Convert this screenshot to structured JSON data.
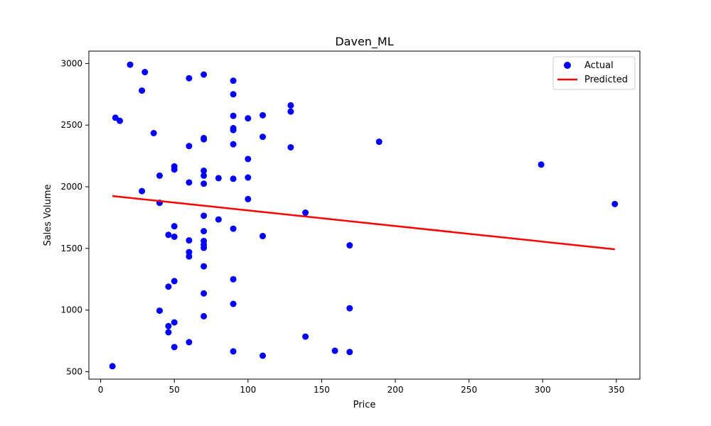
{
  "chart_data": {
    "type": "scatter",
    "title": "Daven_ML",
    "xlabel": "Price",
    "ylabel": "Sales Volume",
    "xlim": [
      -8,
      366
    ],
    "ylim": [
      440,
      3100
    ],
    "xticks": [
      0,
      50,
      100,
      150,
      200,
      250,
      300,
      350
    ],
    "yticks": [
      500,
      1000,
      1500,
      2000,
      2500,
      3000
    ],
    "grid": false,
    "legend_position": "top-right",
    "series": [
      {
        "name": "Actual",
        "kind": "scatter",
        "color": "#0000ff",
        "points": [
          [
            8,
            545
          ],
          [
            10,
            2560
          ],
          [
            13,
            2535
          ],
          [
            20,
            2990
          ],
          [
            28,
            2780
          ],
          [
            28,
            1965
          ],
          [
            30,
            2930
          ],
          [
            36,
            2435
          ],
          [
            40,
            2090
          ],
          [
            40,
            1870
          ],
          [
            40,
            995
          ],
          [
            46,
            1610
          ],
          [
            46,
            1190
          ],
          [
            46,
            870
          ],
          [
            46,
            820
          ],
          [
            50,
            2165
          ],
          [
            50,
            2140
          ],
          [
            50,
            1680
          ],
          [
            50,
            1595
          ],
          [
            50,
            1235
          ],
          [
            50,
            900
          ],
          [
            50,
            700
          ],
          [
            60,
            2880
          ],
          [
            60,
            2330
          ],
          [
            60,
            2035
          ],
          [
            60,
            1565
          ],
          [
            60,
            1470
          ],
          [
            60,
            1435
          ],
          [
            60,
            740
          ],
          [
            70,
            2910
          ],
          [
            70,
            2395
          ],
          [
            70,
            2385
          ],
          [
            70,
            2130
          ],
          [
            70,
            2090
          ],
          [
            70,
            2025
          ],
          [
            70,
            1765
          ],
          [
            70,
            1640
          ],
          [
            70,
            1560
          ],
          [
            70,
            1530
          ],
          [
            70,
            1505
          ],
          [
            70,
            1355
          ],
          [
            70,
            1135
          ],
          [
            70,
            950
          ],
          [
            80,
            2070
          ],
          [
            80,
            1735
          ],
          [
            90,
            2860
          ],
          [
            90,
            2750
          ],
          [
            90,
            2575
          ],
          [
            90,
            2475
          ],
          [
            90,
            2460
          ],
          [
            90,
            2345
          ],
          [
            90,
            2065
          ],
          [
            90,
            1660
          ],
          [
            90,
            1250
          ],
          [
            90,
            1050
          ],
          [
            90,
            665
          ],
          [
            100,
            2555
          ],
          [
            100,
            2225
          ],
          [
            100,
            2075
          ],
          [
            100,
            1900
          ],
          [
            110,
            2580
          ],
          [
            110,
            2405
          ],
          [
            110,
            1600
          ],
          [
            110,
            630
          ],
          [
            129,
            2660
          ],
          [
            129,
            2610
          ],
          [
            129,
            2320
          ],
          [
            139,
            1790
          ],
          [
            139,
            785
          ],
          [
            159,
            670
          ],
          [
            169,
            1525
          ],
          [
            169,
            1015
          ],
          [
            169,
            660
          ],
          [
            189,
            2365
          ],
          [
            299,
            2180
          ],
          [
            349,
            1860
          ]
        ]
      },
      {
        "name": "Predicted",
        "kind": "line",
        "color": "#ff0000",
        "points": [
          [
            8,
            1925
          ],
          [
            349,
            1493
          ]
        ]
      }
    ]
  }
}
